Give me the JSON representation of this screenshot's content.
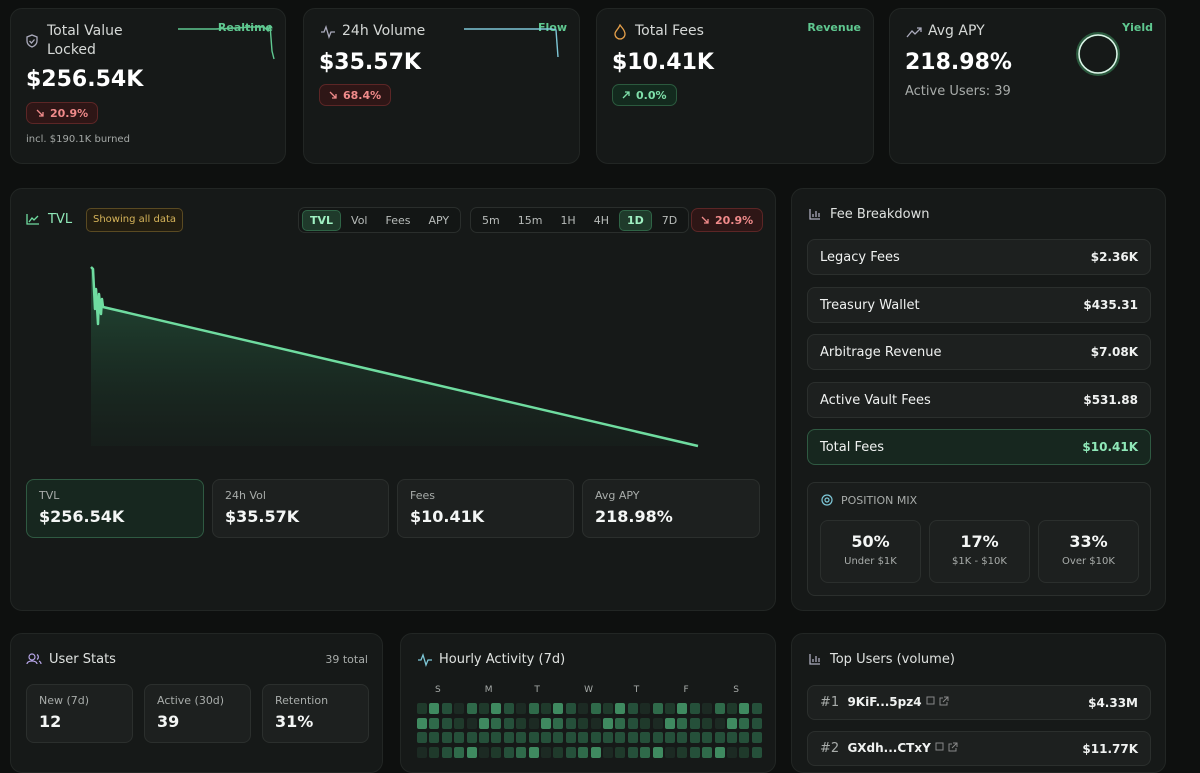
{
  "stats": [
    {
      "title": "Total Value Locked",
      "tag": "Realtime",
      "value": "$256.54K",
      "change": "20.9%",
      "note": "incl. $190.1K burned"
    },
    {
      "title": "24h Volume",
      "tag": "Flow",
      "value": "$35.57K",
      "change": "68.4%"
    },
    {
      "title": "Total Fees",
      "tag": "Revenue",
      "value": "$10.41K",
      "change": "0.0%"
    },
    {
      "title": "Avg APY",
      "tag": "Yield",
      "value": "218.98%",
      "note": "Active Users: 39"
    }
  ],
  "tvl_panel": {
    "title": "TVL",
    "badge": "Showing all data",
    "metrics": [
      "TVL",
      "Vol",
      "Fees",
      "APY"
    ],
    "ranges": [
      "5m",
      "15m",
      "1H",
      "4H",
      "1D",
      "7D"
    ],
    "change": "20.9%",
    "summary": [
      {
        "label": "TVL",
        "value": "$256.54K"
      },
      {
        "label": "24h Vol",
        "value": "$35.57K"
      },
      {
        "label": "Fees",
        "value": "$10.41K"
      },
      {
        "label": "Avg APY",
        "value": "218.98%"
      }
    ]
  },
  "fee_breakdown": {
    "title": "Fee Breakdown",
    "rows": [
      {
        "label": "Legacy Fees",
        "value": "$2.36K"
      },
      {
        "label": "Treasury Wallet",
        "value": "$435.31"
      },
      {
        "label": "Arbitrage Revenue",
        "value": "$7.08K"
      },
      {
        "label": "Active Vault Fees",
        "value": "$531.88"
      }
    ],
    "total": {
      "label": "Total Fees",
      "value": "$10.41K"
    },
    "position_mix": {
      "title": "POSITION MIX",
      "items": [
        {
          "value": "50%",
          "label": "Under $1K"
        },
        {
          "value": "17%",
          "label": "$1K - $10K"
        },
        {
          "value": "33%",
          "label": "Over $10K"
        }
      ]
    }
  },
  "user_stats": {
    "title": "User Stats",
    "total": "39 total",
    "items": [
      {
        "label": "New (7d)",
        "value": "12"
      },
      {
        "label": "Active (30d)",
        "value": "39"
      },
      {
        "label": "Retention",
        "value": "31%"
      }
    ]
  },
  "hourly_activity": {
    "title": "Hourly Activity (7d)",
    "days": [
      "S",
      "M",
      "T",
      "W",
      "T",
      "F",
      "S"
    ]
  },
  "top_users": {
    "title": "Top Users (volume)",
    "rows": [
      {
        "rank": "#1",
        "address": "9KiF...5pz4",
        "value": "$4.33M"
      },
      {
        "rank": "#2",
        "address": "GXdh...CTxY",
        "value": "$11.77K"
      }
    ]
  }
}
